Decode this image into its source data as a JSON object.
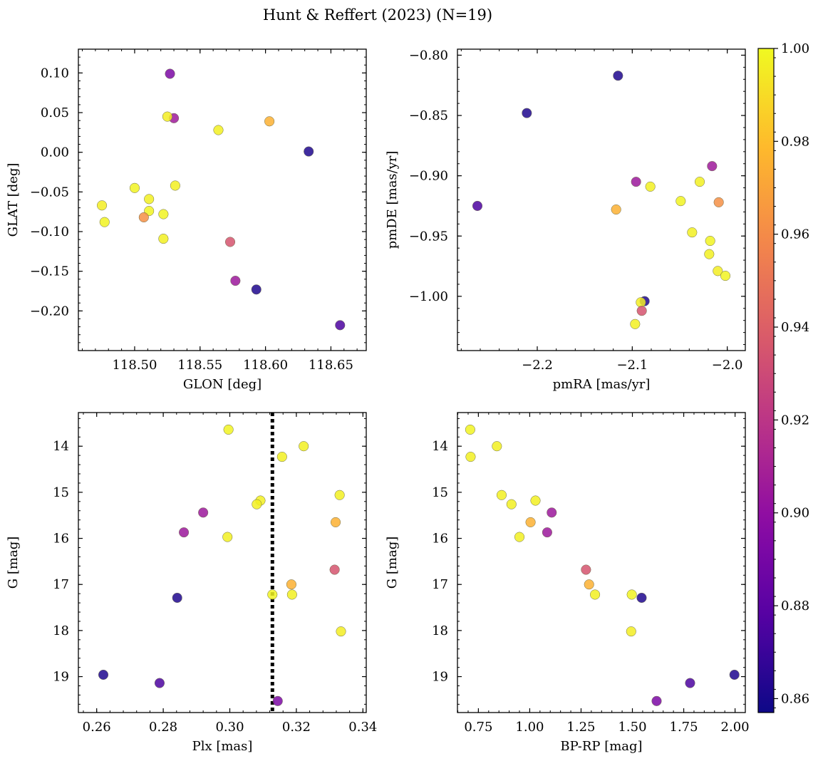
{
  "title": "Hunt & Reffert (2023) (N=19)",
  "colorbar": {
    "colormap": "plasma",
    "range": [
      0.857,
      1.0
    ],
    "ticks": [
      0.86,
      0.88,
      0.9,
      0.92,
      0.94,
      0.96,
      0.98,
      1.0
    ],
    "tick_labels": [
      "0.86",
      "0.88",
      "0.90",
      "0.92",
      "0.94",
      "0.96",
      "0.98",
      "1.00"
    ]
  },
  "chart_data": [
    {
      "id": "glon-glat",
      "type": "scatter",
      "xlabel": "GLON [deg]",
      "ylabel": "GLAT [deg]",
      "xlim": [
        118.457,
        118.677
      ],
      "ylim": [
        -0.25,
        0.13
      ],
      "xticks": [
        118.5,
        118.55,
        118.6,
        118.65
      ],
      "xtick_labels": [
        "118.50",
        "118.55",
        "118.60",
        "118.65"
      ],
      "yticks": [
        0.1,
        0.05,
        0.0,
        -0.05,
        -0.1,
        -0.15,
        -0.2
      ],
      "ytick_labels": [
        "0.10",
        "0.05",
        "0.00",
        "−0.05",
        "−0.10",
        "−0.15",
        "−0.20"
      ],
      "points": [
        {
          "x": 118.527,
          "y": 0.099,
          "c": 0.892
        },
        {
          "x": 118.53,
          "y": 0.043,
          "c": 0.906
        },
        {
          "x": 118.525,
          "y": 0.045,
          "c": 0.996
        },
        {
          "x": 118.564,
          "y": 0.028,
          "c": 0.997
        },
        {
          "x": 118.603,
          "y": 0.039,
          "c": 0.975
        },
        {
          "x": 118.633,
          "y": 0.001,
          "c": 0.862
        },
        {
          "x": 118.5,
          "y": -0.045,
          "c": 0.998
        },
        {
          "x": 118.531,
          "y": -0.042,
          "c": 0.997
        },
        {
          "x": 118.511,
          "y": -0.059,
          "c": 0.997
        },
        {
          "x": 118.511,
          "y": -0.074,
          "c": 0.998
        },
        {
          "x": 118.475,
          "y": -0.067,
          "c": 0.996
        },
        {
          "x": 118.477,
          "y": -0.088,
          "c": 0.998
        },
        {
          "x": 118.507,
          "y": -0.082,
          "c": 0.962
        },
        {
          "x": 118.522,
          "y": -0.078,
          "c": 0.998
        },
        {
          "x": 118.522,
          "y": -0.109,
          "c": 0.997
        },
        {
          "x": 118.573,
          "y": -0.113,
          "c": 0.935
        },
        {
          "x": 118.577,
          "y": -0.162,
          "c": 0.905
        },
        {
          "x": 118.593,
          "y": -0.173,
          "c": 0.862
        },
        {
          "x": 118.657,
          "y": -0.218,
          "c": 0.875
        }
      ]
    },
    {
      "id": "pmra-pmde",
      "type": "scatter",
      "xlabel": "pmRA [mas/yr]",
      "ylabel": "pmDE [mas/yr]",
      "xlim": [
        -2.284,
        -1.981
      ],
      "ylim": [
        -1.045,
        -0.795
      ],
      "xticks": [
        -2.2,
        -2.1,
        -2.0
      ],
      "xtick_labels": [
        "−2.2",
        "−2.1",
        "−2.0"
      ],
      "yticks": [
        -0.8,
        -0.85,
        -0.9,
        -0.95,
        -1.0
      ],
      "ytick_labels": [
        "−0.80",
        "−0.85",
        "−0.90",
        "−0.95",
        "−1.00"
      ],
      "points": [
        {
          "x": -2.115,
          "y": -0.817,
          "c": 0.862
        },
        {
          "x": -2.211,
          "y": -0.848,
          "c": 0.862
        },
        {
          "x": -2.263,
          "y": -0.925,
          "c": 0.875
        },
        {
          "x": -2.016,
          "y": -0.892,
          "c": 0.906
        },
        {
          "x": -2.096,
          "y": -0.905,
          "c": 0.905
        },
        {
          "x": -2.081,
          "y": -0.909,
          "c": 0.997
        },
        {
          "x": -2.029,
          "y": -0.905,
          "c": 0.997
        },
        {
          "x": -2.117,
          "y": -0.928,
          "c": 0.975
        },
        {
          "x": -2.009,
          "y": -0.922,
          "c": 0.962
        },
        {
          "x": -2.049,
          "y": -0.921,
          "c": 0.998
        },
        {
          "x": -2.037,
          "y": -0.947,
          "c": 0.997
        },
        {
          "x": -2.018,
          "y": -0.954,
          "c": 0.998
        },
        {
          "x": -2.019,
          "y": -0.965,
          "c": 0.997
        },
        {
          "x": -2.01,
          "y": -0.979,
          "c": 0.996
        },
        {
          "x": -2.002,
          "y": -0.983,
          "c": 0.998
        },
        {
          "x": -2.087,
          "y": -1.004,
          "c": 0.862
        },
        {
          "x": -2.091,
          "y": -1.005,
          "c": 0.996
        },
        {
          "x": -2.09,
          "y": -1.012,
          "c": 0.935
        },
        {
          "x": -2.097,
          "y": -1.023,
          "c": 0.997
        }
      ]
    },
    {
      "id": "plx-g",
      "type": "scatter",
      "xlabel": "Plx [mas]",
      "ylabel": "G [mag]",
      "xlim": [
        0.2545,
        0.341
      ],
      "ylim": [
        19.78,
        13.27
      ],
      "xticks": [
        0.26,
        0.28,
        0.3,
        0.32,
        0.34
      ],
      "xtick_labels": [
        "0.26",
        "0.28",
        "0.30",
        "0.32",
        "0.34"
      ],
      "yticks": [
        14,
        15,
        16,
        17,
        18,
        19
      ],
      "ytick_labels": [
        "14",
        "15",
        "16",
        "17",
        "18",
        "19"
      ],
      "vline": {
        "x": 0.3128
      },
      "points": [
        {
          "x": 0.2996,
          "y": 13.64,
          "c": 0.998
        },
        {
          "x": 0.3222,
          "y": 14.0,
          "c": 0.997
        },
        {
          "x": 0.3157,
          "y": 14.23,
          "c": 0.997
        },
        {
          "x": 0.333,
          "y": 15.06,
          "c": 0.997
        },
        {
          "x": 0.3092,
          "y": 15.18,
          "c": 0.997
        },
        {
          "x": 0.3081,
          "y": 15.26,
          "c": 0.997
        },
        {
          "x": 0.292,
          "y": 15.44,
          "c": 0.905
        },
        {
          "x": 0.3318,
          "y": 15.65,
          "c": 0.975
        },
        {
          "x": 0.2862,
          "y": 15.87,
          "c": 0.905
        },
        {
          "x": 0.2993,
          "y": 15.97,
          "c": 0.997
        },
        {
          "x": 0.3315,
          "y": 16.68,
          "c": 0.935
        },
        {
          "x": 0.3185,
          "y": 17.0,
          "c": 0.975
        },
        {
          "x": 0.3128,
          "y": 17.22,
          "c": 0.998
        },
        {
          "x": 0.3187,
          "y": 17.22,
          "c": 0.997
        },
        {
          "x": 0.2842,
          "y": 17.29,
          "c": 0.862
        },
        {
          "x": 0.3334,
          "y": 18.02,
          "c": 0.996
        },
        {
          "x": 0.262,
          "y": 18.96,
          "c": 0.862
        },
        {
          "x": 0.2789,
          "y": 19.14,
          "c": 0.875
        },
        {
          "x": 0.3144,
          "y": 19.53,
          "c": 0.892
        }
      ]
    },
    {
      "id": "bprp-g",
      "type": "scatter",
      "xlabel": "BP-RP [mag]",
      "ylabel": "G [mag]",
      "xlim": [
        0.648,
        2.05
      ],
      "ylim": [
        19.78,
        13.27
      ],
      "xticks": [
        0.75,
        1.0,
        1.25,
        1.5,
        1.75,
        2.0
      ],
      "xtick_labels": [
        "0.75",
        "1.00",
        "1.25",
        "1.50",
        "1.75",
        "2.00"
      ],
      "yticks": [
        14,
        15,
        16,
        17,
        18,
        19
      ],
      "ytick_labels": [
        "14",
        "15",
        "16",
        "17",
        "18",
        "19"
      ],
      "points": [
        {
          "x": 0.71,
          "y": 13.64,
          "c": 0.998
        },
        {
          "x": 0.84,
          "y": 14.0,
          "c": 0.997
        },
        {
          "x": 0.712,
          "y": 14.23,
          "c": 0.997
        },
        {
          "x": 0.863,
          "y": 15.06,
          "c": 0.997
        },
        {
          "x": 1.028,
          "y": 15.18,
          "c": 0.997
        },
        {
          "x": 0.911,
          "y": 15.26,
          "c": 0.997
        },
        {
          "x": 1.107,
          "y": 15.44,
          "c": 0.905
        },
        {
          "x": 1.004,
          "y": 15.65,
          "c": 0.975
        },
        {
          "x": 1.085,
          "y": 15.87,
          "c": 0.905
        },
        {
          "x": 0.95,
          "y": 15.97,
          "c": 0.997
        },
        {
          "x": 1.274,
          "y": 16.68,
          "c": 0.935
        },
        {
          "x": 1.289,
          "y": 17.0,
          "c": 0.975
        },
        {
          "x": 1.318,
          "y": 17.22,
          "c": 0.997
        },
        {
          "x": 1.497,
          "y": 17.22,
          "c": 0.998
        },
        {
          "x": 1.545,
          "y": 17.29,
          "c": 0.862
        },
        {
          "x": 1.494,
          "y": 18.02,
          "c": 0.996
        },
        {
          "x": 1.997,
          "y": 18.96,
          "c": 0.862
        },
        {
          "x": 1.781,
          "y": 19.14,
          "c": 0.875
        },
        {
          "x": 1.618,
          "y": 19.53,
          "c": 0.892
        }
      ]
    }
  ]
}
